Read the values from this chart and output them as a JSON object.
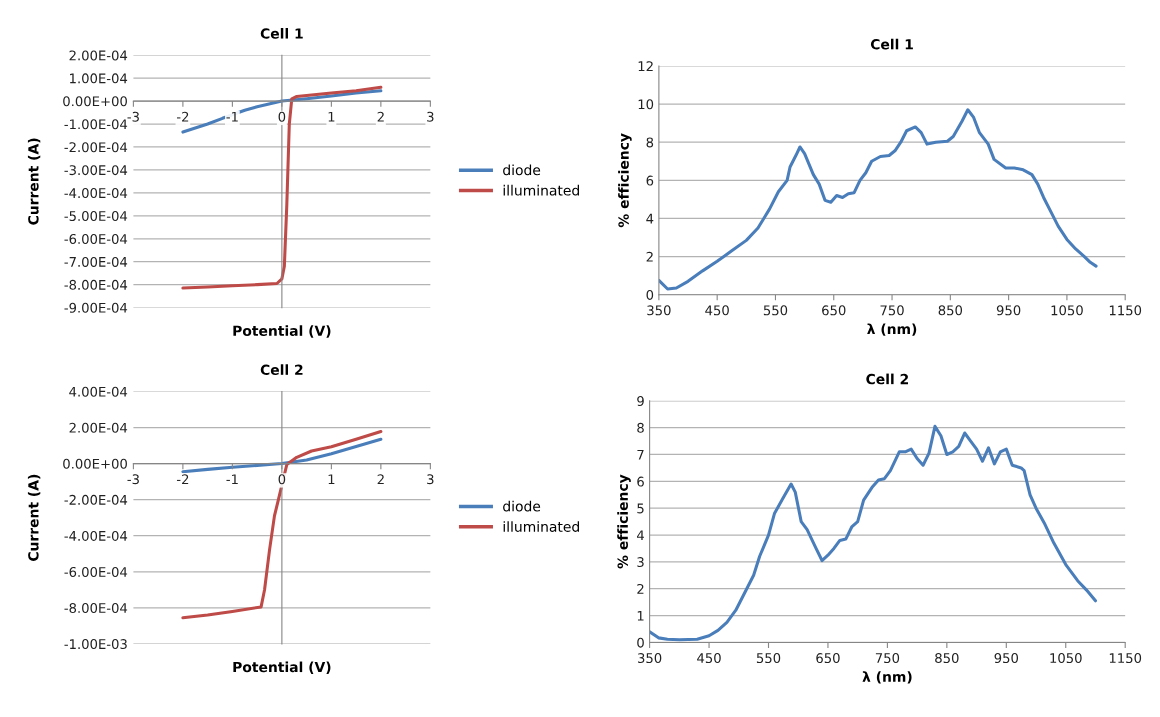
{
  "chart_data": [
    {
      "type": "line",
      "title": "Cell 1",
      "xlabel": "Potential (V)",
      "ylabel": "Current (A)",
      "xlim": [
        -3,
        3
      ],
      "xticks": [
        -3,
        -2,
        -1,
        0,
        1,
        2,
        3
      ],
      "ylim": [
        -0.0009,
        0.0002
      ],
      "yticks": [
        {
          "value": 0.0002,
          "label": "2.00E-04"
        },
        {
          "value": 0.0001,
          "label": "1.00E-04"
        },
        {
          "value": 0,
          "label": "0.00E+00"
        },
        {
          "value": -0.0001,
          "label": "-1.00E-04"
        },
        {
          "value": -0.0002,
          "label": "-2.00E-04"
        },
        {
          "value": -0.0003,
          "label": "-3.00E-04"
        },
        {
          "value": -0.0004,
          "label": "-4.00E-04"
        },
        {
          "value": -0.0005,
          "label": "-5.00E-04"
        },
        {
          "value": -0.0006,
          "label": "-6.00E-04"
        },
        {
          "value": -0.0007,
          "label": "-7.00E-04"
        },
        {
          "value": -0.0008,
          "label": "-8.00E-04"
        },
        {
          "value": -0.0009,
          "label": "-9.00E-04"
        }
      ],
      "grid": "y",
      "legend": "right",
      "series": [
        {
          "name": "diode",
          "color": "#4a7ebb",
          "x": [
            -2,
            -1.5,
            -1.2,
            -0.75,
            -0.5,
            0,
            0.5,
            1,
            1.5,
            2
          ],
          "values": [
            -0.000135,
            -0.0001,
            -7.5e-05,
            -4e-05,
            -2.5e-05,
            0,
            1e-05,
            2.2e-05,
            3.5e-05,
            4.5e-05
          ]
        },
        {
          "name": "illuminated",
          "color": "#be4b48",
          "x": [
            -2,
            -1.5,
            -1,
            -0.5,
            -0.1,
            0,
            0.05,
            0.1,
            0.15,
            0.2,
            0.3,
            1,
            1.5,
            2
          ],
          "values": [
            -0.000815,
            -0.00081,
            -0.000805,
            -0.0008,
            -0.000795,
            -0.000775,
            -0.00072,
            -0.00045,
            -0.0001,
            1e-05,
            2e-05,
            3.5e-05,
            4.5e-05,
            6e-05
          ]
        }
      ]
    },
    {
      "type": "line",
      "title": "Cell 1",
      "xlabel": "λ (nm)",
      "ylabel": "% efficiency",
      "xlim": [
        350,
        1150
      ],
      "xticks": [
        350,
        450,
        550,
        650,
        750,
        850,
        950,
        1050,
        1150
      ],
      "ylim": [
        0,
        12
      ],
      "yticks": [
        0,
        2,
        4,
        6,
        8,
        10,
        12
      ],
      "grid": "y",
      "series": [
        {
          "color": "#4a7ebb",
          "x": [
            350,
            365,
            380,
            400,
            425,
            450,
            475,
            500,
            520,
            540,
            555,
            570,
            575,
            585,
            592,
            600,
            615,
            625,
            635,
            645,
            655,
            665,
            675,
            685,
            695,
            705,
            715,
            730,
            745,
            755,
            765,
            775,
            790,
            800,
            810,
            825,
            845,
            855,
            870,
            880,
            890,
            900,
            915,
            925,
            945,
            960,
            975,
            990,
            1000,
            1010,
            1025,
            1035,
            1050,
            1065,
            1080,
            1090,
            1100
          ],
          "values": [
            0.75,
            0.3,
            0.35,
            0.7,
            1.25,
            1.75,
            2.3,
            2.85,
            3.5,
            4.5,
            5.4,
            6.0,
            6.7,
            7.3,
            7.75,
            7.4,
            6.3,
            5.8,
            4.95,
            4.85,
            5.2,
            5.1,
            5.3,
            5.35,
            6.0,
            6.4,
            7.0,
            7.25,
            7.3,
            7.55,
            8.0,
            8.6,
            8.8,
            8.5,
            7.9,
            8.0,
            8.05,
            8.3,
            9.1,
            9.7,
            9.3,
            8.5,
            7.9,
            7.1,
            6.65,
            6.65,
            6.55,
            6.3,
            5.8,
            5.1,
            4.2,
            3.6,
            2.9,
            2.4,
            2.0,
            1.7,
            1.5
          ]
        }
      ]
    },
    {
      "type": "line",
      "title": "Cell 2",
      "xlabel": "Potential (V)",
      "ylabel": "Current (A)",
      "xlim": [
        -3,
        3
      ],
      "xticks": [
        -3,
        -2,
        -1,
        0,
        1,
        2,
        3
      ],
      "ylim": [
        -0.001,
        0.0004
      ],
      "yticks": [
        {
          "value": 0.0004,
          "label": "4.00E-04"
        },
        {
          "value": 0.0002,
          "label": "2.00E-04"
        },
        {
          "value": 0,
          "label": "0.00E+00"
        },
        {
          "value": -0.0002,
          "label": "-2.00E-04"
        },
        {
          "value": -0.0004,
          "label": "-4.00E-04"
        },
        {
          "value": -0.0006,
          "label": "-6.00E-04"
        },
        {
          "value": -0.0008,
          "label": "-8.00E-04"
        },
        {
          "value": -0.001,
          "label": "-1.00E-03"
        }
      ],
      "grid": "y",
      "legend": "right",
      "series": [
        {
          "name": "diode",
          "color": "#4a7ebb",
          "x": [
            -2,
            -1.5,
            -1,
            -0.5,
            0,
            0.5,
            1,
            1.5,
            2
          ],
          "values": [
            -4.5e-05,
            -3.2e-05,
            -2e-05,
            -1e-05,
            0,
            2e-05,
            5.5e-05,
            9.5e-05,
            0.000135
          ]
        },
        {
          "name": "illuminated",
          "color": "#be4b48",
          "x": [
            -2,
            -1.5,
            -1,
            -0.42,
            -0.35,
            -0.25,
            -0.15,
            -0.07,
            0.1,
            0.3,
            0.6,
            1,
            1.5,
            2
          ],
          "values": [
            -0.000855,
            -0.00084,
            -0.00082,
            -0.000795,
            -0.0007,
            -0.00048,
            -0.00029,
            -0.0002,
            -5e-06,
            3.5e-05,
            7e-05,
            9.3e-05,
            0.000135,
            0.000178
          ]
        }
      ]
    },
    {
      "type": "line",
      "title": "Cell 2",
      "xlabel": "λ (nm)",
      "ylabel": "% efficiency",
      "xlim": [
        350,
        1150
      ],
      "xticks": [
        350,
        450,
        550,
        650,
        750,
        850,
        950,
        1050,
        1150
      ],
      "ylim": [
        0,
        9
      ],
      "yticks": [
        0,
        1,
        2,
        3,
        4,
        5,
        6,
        7,
        8,
        9
      ],
      "grid": "y",
      "series": [
        {
          "color": "#4a7ebb",
          "x": [
            350,
            365,
            380,
            400,
            430,
            450,
            465,
            480,
            495,
            510,
            525,
            535,
            550,
            560,
            575,
            588,
            595,
            605,
            615,
            630,
            640,
            650,
            660,
            670,
            680,
            690,
            700,
            710,
            725,
            735,
            745,
            755,
            770,
            780,
            790,
            800,
            810,
            820,
            830,
            840,
            850,
            860,
            870,
            880,
            890,
            900,
            910,
            920,
            930,
            940,
            950,
            960,
            975,
            980,
            990,
            1000,
            1015,
            1030,
            1050,
            1070,
            1085,
            1100
          ],
          "values": [
            0.4,
            0.17,
            0.12,
            0.1,
            0.12,
            0.25,
            0.45,
            0.75,
            1.2,
            1.85,
            2.5,
            3.2,
            4.0,
            4.8,
            5.4,
            5.9,
            5.6,
            4.5,
            4.2,
            3.5,
            3.05,
            3.25,
            3.5,
            3.8,
            3.85,
            4.3,
            4.5,
            5.3,
            5.8,
            6.05,
            6.1,
            6.4,
            7.1,
            7.1,
            7.2,
            6.85,
            6.6,
            7.05,
            8.05,
            7.7,
            7.0,
            7.1,
            7.3,
            7.8,
            7.5,
            7.2,
            6.75,
            7.25,
            6.65,
            7.1,
            7.2,
            6.6,
            6.5,
            6.4,
            5.5,
            5.0,
            4.4,
            3.7,
            2.9,
            2.3,
            1.95,
            1.55
          ]
        }
      ]
    }
  ]
}
